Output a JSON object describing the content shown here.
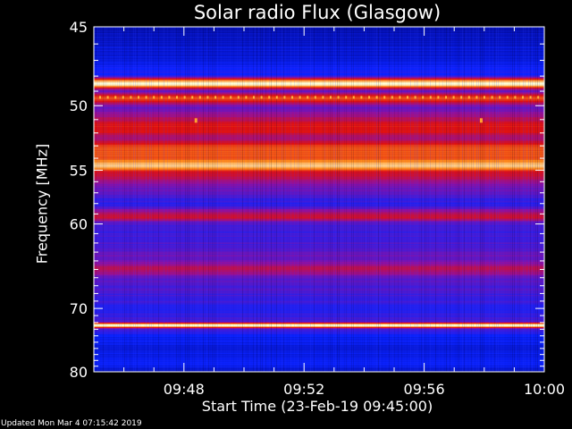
{
  "chart_data": {
    "type": "heatmap",
    "title": "Solar radio Flux (Glasgow)",
    "xlabel": "Start Time (23-Feb-19 09:45:00)",
    "ylabel": "Frequency [MHz]",
    "x_ticks": [
      "09:48",
      "09:52",
      "09:56",
      "10:00"
    ],
    "x_tick_values_min": [
      3,
      7,
      11,
      15
    ],
    "xlim_min": [
      0,
      15
    ],
    "y_ticks": [
      45,
      50,
      55,
      60,
      70,
      80
    ],
    "ylim": [
      45,
      80
    ],
    "y_scale": "reciprocal",
    "colormap": [
      "#000070",
      "#0a22ff",
      "#9010a0",
      "#e01010",
      "#ff8a1a",
      "#ffffd8"
    ],
    "intensity_profile": [
      {
        "freq": 45.0,
        "level": 0.1
      },
      {
        "freq": 46.6,
        "level": 0.14
      },
      {
        "freq": 47.9,
        "level": 0.22
      },
      {
        "freq": 48.5,
        "level": 1.0
      },
      {
        "freq": 49.0,
        "level": 0.35
      },
      {
        "freq": 49.5,
        "level": 0.7
      },
      {
        "freq": 50.1,
        "level": 0.35
      },
      {
        "freq": 51.7,
        "level": 0.62
      },
      {
        "freq": 52.4,
        "level": 0.48
      },
      {
        "freq": 53.2,
        "level": 0.72
      },
      {
        "freq": 53.9,
        "level": 0.7
      },
      {
        "freq": 54.6,
        "level": 0.92
      },
      {
        "freq": 55.3,
        "level": 0.55
      },
      {
        "freq": 56.5,
        "level": 0.35
      },
      {
        "freq": 58.0,
        "level": 0.25
      },
      {
        "freq": 59.3,
        "level": 0.55
      },
      {
        "freq": 60.0,
        "level": 0.3
      },
      {
        "freq": 61.1,
        "level": 0.28
      },
      {
        "freq": 62.3,
        "level": 0.3
      },
      {
        "freq": 63.9,
        "level": 0.35
      },
      {
        "freq": 64.9,
        "level": 0.5
      },
      {
        "freq": 66.2,
        "level": 0.32
      },
      {
        "freq": 67.1,
        "level": 0.3
      },
      {
        "freq": 68.3,
        "level": 0.28
      },
      {
        "freq": 70.2,
        "level": 0.24
      },
      {
        "freq": 71.8,
        "level": 0.3
      },
      {
        "freq": 72.4,
        "level": 1.0
      },
      {
        "freq": 73.1,
        "level": 0.25
      },
      {
        "freq": 74.5,
        "level": 0.18
      },
      {
        "freq": 76.4,
        "level": 0.16
      },
      {
        "freq": 78.2,
        "level": 0.2
      },
      {
        "freq": 80.0,
        "level": 0.12
      }
    ],
    "spikes": [
      {
        "time_min": 3.4,
        "freq": 51.1
      },
      {
        "time_min": 12.9,
        "freq": 51.1
      }
    ]
  },
  "footer": "Updated Mon Mar  4 07:15:42 2019"
}
